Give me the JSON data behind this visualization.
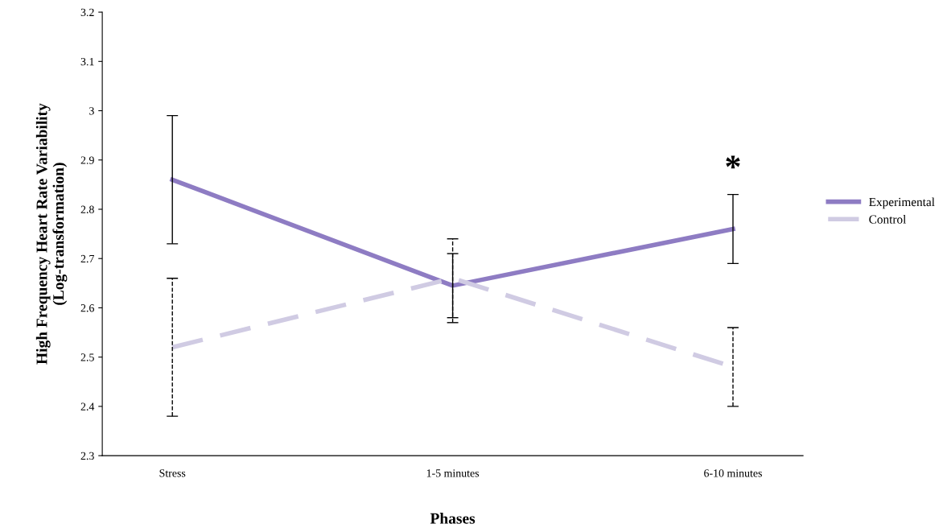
{
  "chart_data": {
    "type": "line",
    "xlabel": "Phases",
    "ylabel": "High Frequency Heart Rate Variability\n(Log-transformation)",
    "categories": [
      "Stress",
      "1-5 minutes",
      "6-10 minutes"
    ],
    "series": [
      {
        "name": "Experimental",
        "color": "#8e7cc3",
        "values": [
          2.86,
          2.645,
          2.76
        ],
        "errors": [
          [
            2.73,
            2.99
          ],
          [
            2.58,
            2.71
          ],
          [
            2.69,
            2.83
          ]
        ],
        "line_style": "solid"
      },
      {
        "name": "Control",
        "color": "#d0cbe3",
        "values": [
          2.52,
          2.66,
          2.48
        ],
        "errors": [
          [
            2.38,
            2.66
          ],
          [
            2.57,
            2.74
          ],
          [
            2.4,
            2.56
          ]
        ],
        "line_style": "dashed"
      }
    ],
    "ylim": [
      2.3,
      3.2
    ],
    "yticks": [
      2.3,
      2.4,
      2.5,
      2.6,
      2.7,
      2.8,
      2.9,
      3,
      3.1,
      3.2
    ],
    "annotations": [
      "*"
    ],
    "grid": false,
    "legend": "right",
    "marker": "none"
  }
}
